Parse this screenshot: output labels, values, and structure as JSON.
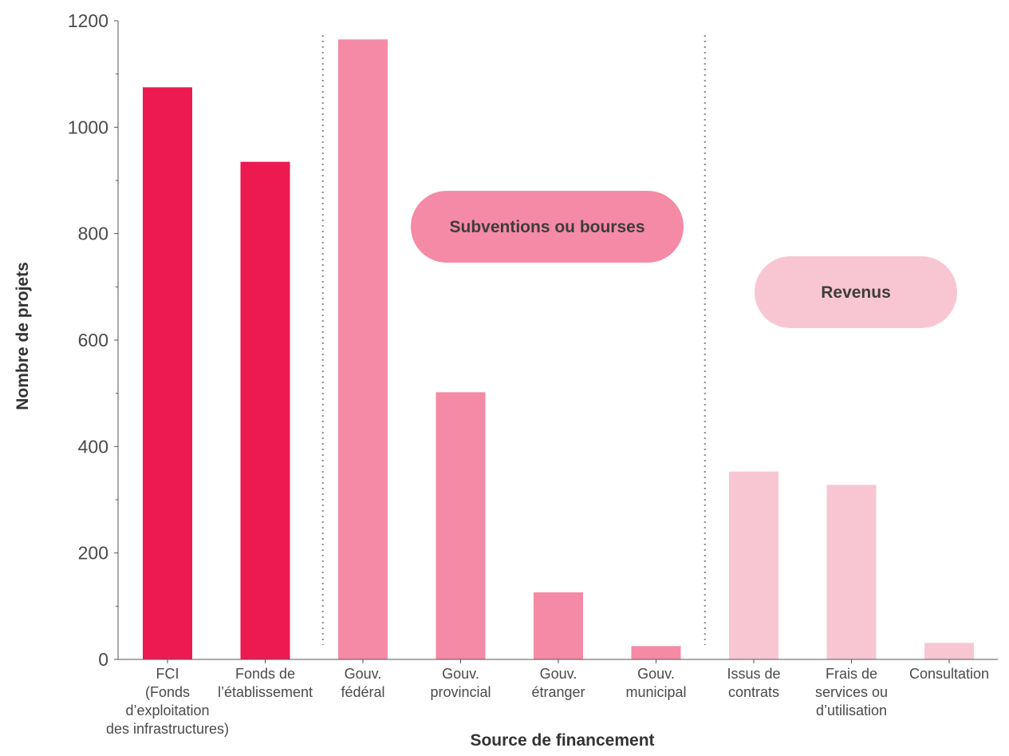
{
  "chart_data": {
    "type": "bar",
    "xlabel": "Source de financement",
    "ylabel": "Nombre de projets",
    "ylim": [
      0,
      1200
    ],
    "yticks": [
      "0",
      "200",
      "400",
      "600",
      "800",
      "1000",
      "1200"
    ],
    "grid": false,
    "categories": [
      {
        "label": [
          "FCI",
          "(Fonds",
          "d’exploitation",
          "des infrastructures)"
        ],
        "value": 1075,
        "group": 0
      },
      {
        "label": [
          "Fonds de",
          "l’établissement"
        ],
        "value": 935,
        "group": 0
      },
      {
        "label": [
          "Gouv.",
          "fédéral"
        ],
        "value": 1165,
        "group": 1
      },
      {
        "label": [
          "Gouv.",
          "provincial"
        ],
        "value": 502,
        "group": 1
      },
      {
        "label": [
          "Gouv.",
          "étranger"
        ],
        "value": 126,
        "group": 1
      },
      {
        "label": [
          "Gouv.",
          "municipal"
        ],
        "value": 25,
        "group": 1
      },
      {
        "label": [
          "Issus de",
          "contrats"
        ],
        "value": 353,
        "group": 2
      },
      {
        "label": [
          "Frais de",
          "services ou",
          "d’utilisation"
        ],
        "value": 328,
        "group": 2
      },
      {
        "label": [
          "Consultation"
        ],
        "value": 31,
        "group": 2
      }
    ],
    "groups": [
      {
        "name": "",
        "color": "#ec1a51"
      },
      {
        "name": "Subventions ou bourses",
        "color": "#f58aa6"
      },
      {
        "name": "Revenus",
        "color": "#f8c6d3"
      }
    ]
  }
}
